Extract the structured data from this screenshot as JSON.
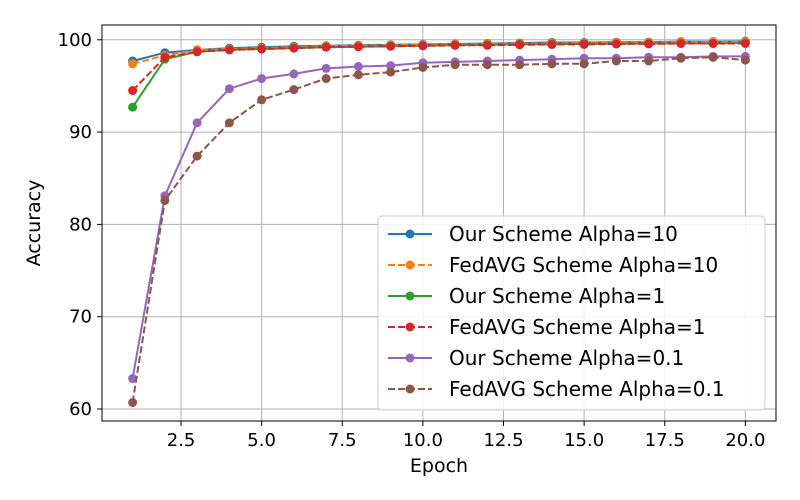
{
  "chart_data": {
    "type": "line",
    "title": "",
    "xlabel": "Epoch",
    "ylabel": "Accuracy",
    "xlim": [
      0.05,
      20.95
    ],
    "ylim": [
      58.7,
      101.6
    ],
    "xticks": [
      2.5,
      5.0,
      7.5,
      10.0,
      12.5,
      15.0,
      17.5,
      20.0
    ],
    "xtick_labels": [
      "2.5",
      "5.0",
      "7.5",
      "10.0",
      "12.5",
      "15.0",
      "17.5",
      "20.0"
    ],
    "yticks": [
      60,
      70,
      80,
      90,
      100
    ],
    "ytick_labels": [
      "60",
      "70",
      "80",
      "90",
      "100"
    ],
    "grid": true,
    "legend_position": "lower-right",
    "x": [
      1,
      2,
      3,
      4,
      5,
      6,
      7,
      8,
      9,
      10,
      11,
      12,
      13,
      14,
      15,
      16,
      17,
      18,
      19,
      20
    ],
    "series": [
      {
        "name": "Our Scheme Alpha=10",
        "color": "#1f77b4",
        "dashed": false,
        "values": [
          97.7,
          98.6,
          98.9,
          99.1,
          99.2,
          99.3,
          99.35,
          99.4,
          99.45,
          99.5,
          99.55,
          99.6,
          99.65,
          99.7,
          99.7,
          99.75,
          99.75,
          99.8,
          99.8,
          99.85
        ]
      },
      {
        "name": "FedAVG Scheme Alpha=10",
        "color": "#ff7f0e",
        "dashed": true,
        "values": [
          97.4,
          98.3,
          98.9,
          99.0,
          99.1,
          99.2,
          99.3,
          99.35,
          99.4,
          99.45,
          99.5,
          99.55,
          99.6,
          99.6,
          99.65,
          99.7,
          99.7,
          99.75,
          99.75,
          99.8
        ]
      },
      {
        "name": "Our Scheme Alpha=1",
        "color": "#2ca02c",
        "dashed": false,
        "values": [
          92.7,
          97.9,
          98.7,
          98.9,
          99.0,
          99.1,
          99.2,
          99.25,
          99.3,
          99.35,
          99.4,
          99.45,
          99.5,
          99.5,
          99.55,
          99.55,
          99.6,
          99.6,
          99.6,
          99.65
        ]
      },
      {
        "name": "FedAVG Scheme Alpha=1",
        "color": "#d62728",
        "dashed": true,
        "values": [
          94.5,
          98.1,
          98.7,
          98.9,
          99.0,
          99.1,
          99.2,
          99.25,
          99.3,
          99.35,
          99.4,
          99.4,
          99.45,
          99.5,
          99.5,
          99.55,
          99.55,
          99.6,
          99.6,
          99.6
        ]
      },
      {
        "name": "Our Scheme Alpha=0.1",
        "color": "#9467bd",
        "dashed": false,
        "values": [
          63.3,
          83.1,
          91.0,
          94.7,
          95.8,
          96.3,
          96.9,
          97.1,
          97.2,
          97.5,
          97.6,
          97.7,
          97.8,
          97.9,
          98.0,
          98.0,
          98.1,
          98.1,
          98.2,
          98.2
        ]
      },
      {
        "name": "FedAVG Scheme Alpha=0.1",
        "color": "#8c564b",
        "dashed": true,
        "values": [
          60.7,
          82.6,
          87.4,
          91.0,
          93.5,
          94.6,
          95.8,
          96.2,
          96.5,
          97.0,
          97.3,
          97.3,
          97.3,
          97.4,
          97.4,
          97.7,
          97.7,
          98.0,
          98.1,
          97.8
        ]
      }
    ]
  }
}
